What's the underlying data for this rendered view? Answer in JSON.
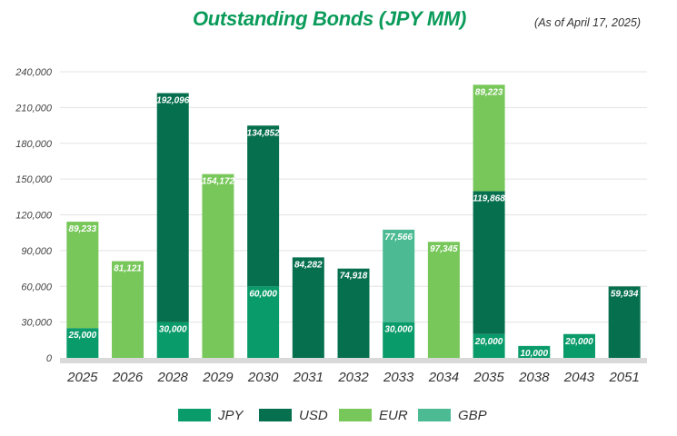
{
  "chart_data": {
    "type": "bar",
    "stacked": true,
    "title": "Outstanding Bonds (JPY MM)",
    "subtitle": "(As of April 17, 2025)",
    "xlabel": "",
    "ylabel": "",
    "ylim": [
      0,
      240000
    ],
    "yticks": [
      "0",
      "30,000",
      "60,000",
      "90,000",
      "120,000",
      "150,000",
      "180,000",
      "210,000",
      "240,000"
    ],
    "grid": true,
    "legend_position": "bottom",
    "categories": [
      "2025",
      "2026",
      "2028",
      "2029",
      "2030",
      "2031",
      "2032",
      "2033",
      "2034",
      "2035",
      "2038",
      "2043",
      "2051"
    ],
    "series": [
      {
        "name": "JPY",
        "color": "#0a9b6a",
        "values": [
          25000,
          0,
          30000,
          0,
          60000,
          0,
          0,
          30000,
          0,
          20000,
          10000,
          20000,
          0
        ]
      },
      {
        "name": "USD",
        "color": "#06704e",
        "values": [
          0,
          0,
          192096,
          0,
          134852,
          84282,
          74918,
          0,
          0,
          119868,
          0,
          0,
          59934
        ]
      },
      {
        "name": "EUR",
        "color": "#77c75a",
        "values": [
          89233,
          81121,
          0,
          154172,
          0,
          0,
          0,
          0,
          97345,
          89223,
          0,
          0,
          0
        ]
      },
      {
        "name": "GBP",
        "color": "#4cbb94",
        "values": [
          0,
          0,
          0,
          0,
          0,
          0,
          0,
          77566,
          0,
          0,
          0,
          0,
          0
        ]
      }
    ],
    "data_labels": [
      {
        "category": "2025",
        "series": "JPY",
        "text": "25,000"
      },
      {
        "category": "2025",
        "series": "EUR",
        "text": "89,233"
      },
      {
        "category": "2026",
        "series": "EUR",
        "text": "81,121"
      },
      {
        "category": "2028",
        "series": "JPY",
        "text": "30,000"
      },
      {
        "category": "2028",
        "series": "USD",
        "text": "192,096"
      },
      {
        "category": "2029",
        "series": "EUR",
        "text": "154,172"
      },
      {
        "category": "2030",
        "series": "JPY",
        "text": "60,000"
      },
      {
        "category": "2030",
        "series": "USD",
        "text": "134,852"
      },
      {
        "category": "2031",
        "series": "USD",
        "text": "84,282"
      },
      {
        "category": "2032",
        "series": "USD",
        "text": "74,918"
      },
      {
        "category": "2033",
        "series": "JPY",
        "text": "30,000"
      },
      {
        "category": "2033",
        "series": "GBP",
        "text": "77,566"
      },
      {
        "category": "2034",
        "series": "EUR",
        "text": "97,345"
      },
      {
        "category": "2035",
        "series": "JPY",
        "text": "20,000"
      },
      {
        "category": "2035",
        "series": "USD",
        "text": "119,868"
      },
      {
        "category": "2035",
        "series": "EUR",
        "text": "89,223"
      },
      {
        "category": "2038",
        "series": "JPY",
        "text": "10,000"
      },
      {
        "category": "2043",
        "series": "JPY",
        "text": "20,000"
      },
      {
        "category": "2051",
        "series": "USD",
        "text": "59,934"
      }
    ]
  }
}
